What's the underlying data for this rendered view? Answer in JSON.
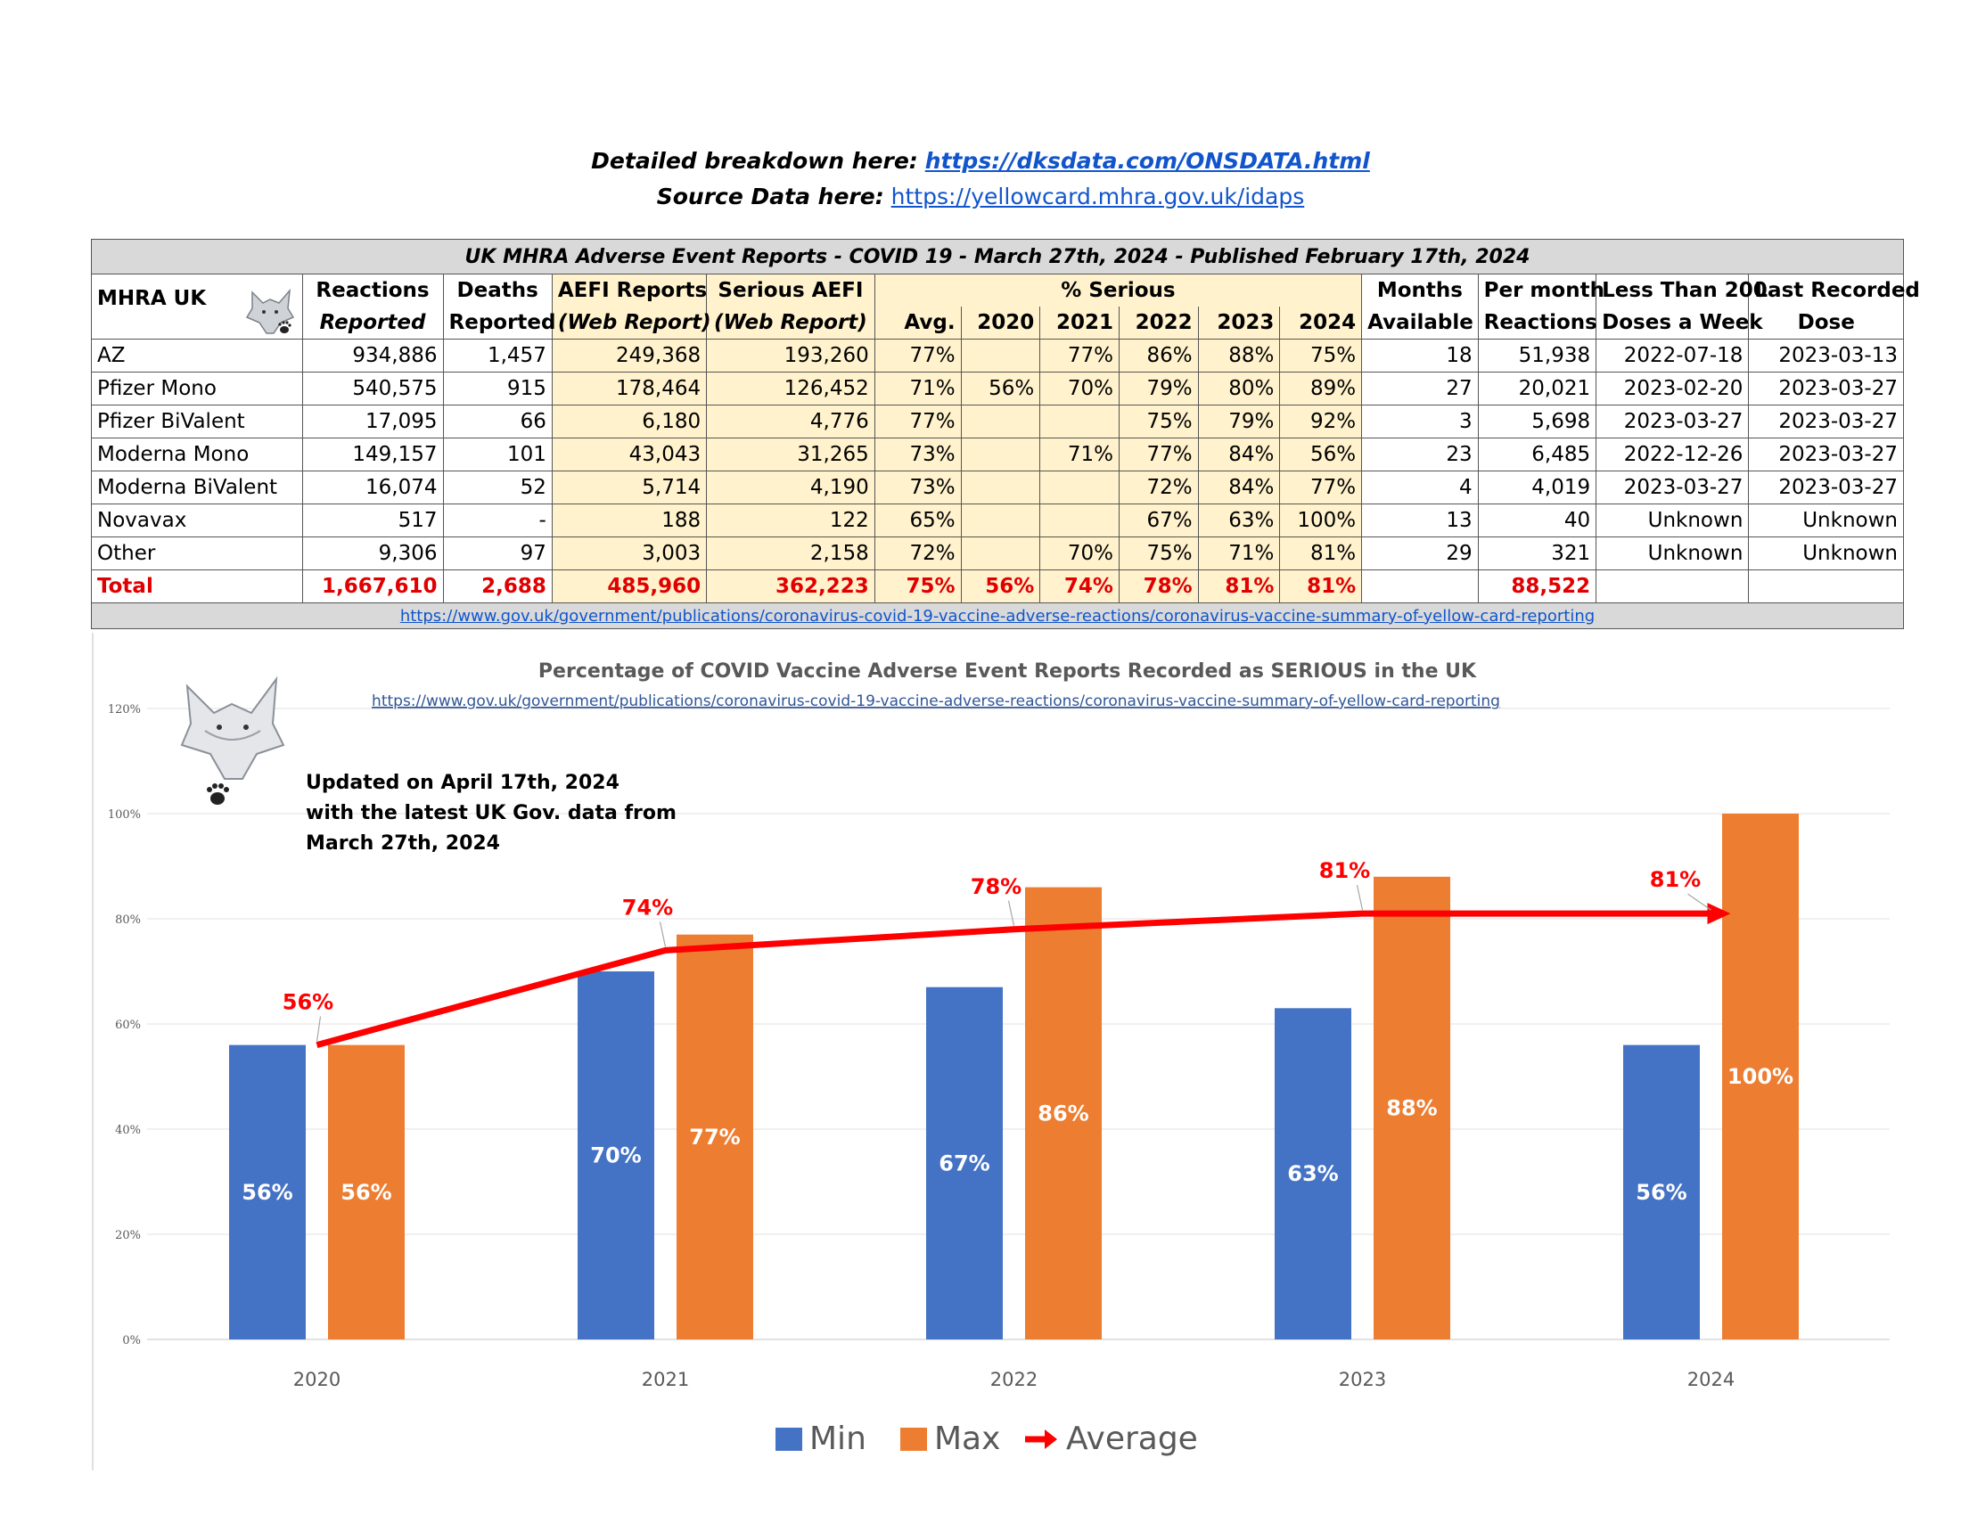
{
  "header": {
    "breakdown_label": "Detailed breakdown here:",
    "breakdown_link": "https://dksdata.com/ONSDATA.html",
    "source_label": "Source Data here:",
    "source_link": "https://yellowcard.mhra.gov.uk/idaps"
  },
  "table": {
    "title": "UK MHRA Adverse Event Reports -  COVID 19 - March 27th, 2024 - Published February 17th, 2024",
    "corner_label": "MHRA UK",
    "col_headers": [
      {
        "l1": "Reactions",
        "l2": "Reported"
      },
      {
        "l1": "Deaths",
        "l2": "Reported"
      },
      {
        "l1": "AEFI Reports",
        "l2": "(Web Report)"
      },
      {
        "l1": "Serious AEFI",
        "l2": "(Web Report)"
      },
      {
        "l1": "% Serious",
        "l2": ""
      },
      {
        "l1": "Months",
        "l2": "Available"
      },
      {
        "l1": "Per month",
        "l2": "Reactions"
      },
      {
        "l1": "Less Than 200",
        "l2": "Doses a Week"
      },
      {
        "l1": "Last Recorded",
        "l2": "Dose"
      }
    ],
    "pct_subheaders": [
      "Avg.",
      "2020",
      "2021",
      "2022",
      "2023",
      "2024"
    ],
    "rows": [
      {
        "name": "AZ",
        "reactions": "934,886",
        "deaths": "1,457",
        "aefi": "249,368",
        "serious": "193,260",
        "avg": "77%",
        "y2020": "",
        "y2021": "77%",
        "y2022": "86%",
        "y2023": "88%",
        "y2024": "75%",
        "months": "18",
        "per_month": "51,938",
        "less200": "2022-07-18",
        "last_dose": "2023-03-13"
      },
      {
        "name": "Pfizer Mono",
        "reactions": "540,575",
        "deaths": "915",
        "aefi": "178,464",
        "serious": "126,452",
        "avg": "71%",
        "y2020": "56%",
        "y2021": "70%",
        "y2022": "79%",
        "y2023": "80%",
        "y2024": "89%",
        "months": "27",
        "per_month": "20,021",
        "less200": "2023-02-20",
        "last_dose": "2023-03-27"
      },
      {
        "name": "Pfizer BiValent",
        "reactions": "17,095",
        "deaths": "66",
        "aefi": "6,180",
        "serious": "4,776",
        "avg": "77%",
        "y2020": "",
        "y2021": "",
        "y2022": "75%",
        "y2023": "79%",
        "y2024": "92%",
        "months": "3",
        "per_month": "5,698",
        "less200": "2023-03-27",
        "last_dose": "2023-03-27"
      },
      {
        "name": "Moderna Mono",
        "reactions": "149,157",
        "deaths": "101",
        "aefi": "43,043",
        "serious": "31,265",
        "avg": "73%",
        "y2020": "",
        "y2021": "71%",
        "y2022": "77%",
        "y2023": "84%",
        "y2024": "56%",
        "months": "23",
        "per_month": "6,485",
        "less200": "2022-12-26",
        "last_dose": "2023-03-27"
      },
      {
        "name": "Moderna BiValent",
        "reactions": "16,074",
        "deaths": "52",
        "aefi": "5,714",
        "serious": "4,190",
        "avg": "73%",
        "y2020": "",
        "y2021": "",
        "y2022": "72%",
        "y2023": "84%",
        "y2024": "77%",
        "months": "4",
        "per_month": "4,019",
        "less200": "2023-03-27",
        "last_dose": "2023-03-27"
      },
      {
        "name": "Novavax",
        "reactions": "517",
        "deaths": "-",
        "aefi": "188",
        "serious": "122",
        "avg": "65%",
        "y2020": "",
        "y2021": "",
        "y2022": "67%",
        "y2023": "63%",
        "y2024": "100%",
        "months": "13",
        "per_month": "40",
        "less200": "Unknown",
        "last_dose": "Unknown"
      },
      {
        "name": "Other",
        "reactions": "9,306",
        "deaths": "97",
        "aefi": "3,003",
        "serious": "2,158",
        "avg": "72%",
        "y2020": "",
        "y2021": "70%",
        "y2022": "75%",
        "y2023": "71%",
        "y2024": "81%",
        "months": "29",
        "per_month": "321",
        "less200": "Unknown",
        "last_dose": "Unknown"
      }
    ],
    "total": {
      "name": "Total",
      "reactions": "1,667,610",
      "deaths": "2,688",
      "aefi": "485,960",
      "serious": "362,223",
      "avg": "75%",
      "y2020": "56%",
      "y2021": "74%",
      "y2022": "78%",
      "y2023": "81%",
      "y2024": "81%",
      "months": "",
      "per_month": "88,522",
      "less200": "",
      "last_dose": ""
    },
    "source_url": "https://www.gov.uk/government/publications/coronavirus-covid-19-vaccine-adverse-reactions/coronavirus-vaccine-summary-of-yellow-card-reporting"
  },
  "chart_data": {
    "type": "bar",
    "title": "Percentage of COVID Vaccine Adverse Event Reports Recorded as SERIOUS in the UK",
    "subtitle": "https://www.gov.uk/government/publications/coronavirus-covid-19-vaccine-adverse-reactions/coronavirus-vaccine-summary-of-yellow-card-reporting",
    "annotation_lines": [
      "Updated on April 17th, 2024",
      "with the latest UK Gov. data from",
      "March 27th, 2024"
    ],
    "categories": [
      "2020",
      "2021",
      "2022",
      "2023",
      "2024"
    ],
    "series": [
      {
        "name": "Min",
        "values": [
          56,
          70,
          67,
          63,
          56
        ],
        "color": "#4472c4"
      },
      {
        "name": "Max",
        "values": [
          56,
          77,
          86,
          88,
          100
        ],
        "color": "#ed7d31"
      }
    ],
    "average": {
      "name": "Average",
      "values": [
        56,
        74,
        78,
        81,
        81
      ],
      "color": "#ff0000"
    },
    "y_ticks": [
      "0%",
      "20%",
      "40%",
      "60%",
      "80%",
      "100%",
      "120%"
    ],
    "ylim": [
      0,
      120
    ],
    "grid": true,
    "legend": "bottom"
  }
}
